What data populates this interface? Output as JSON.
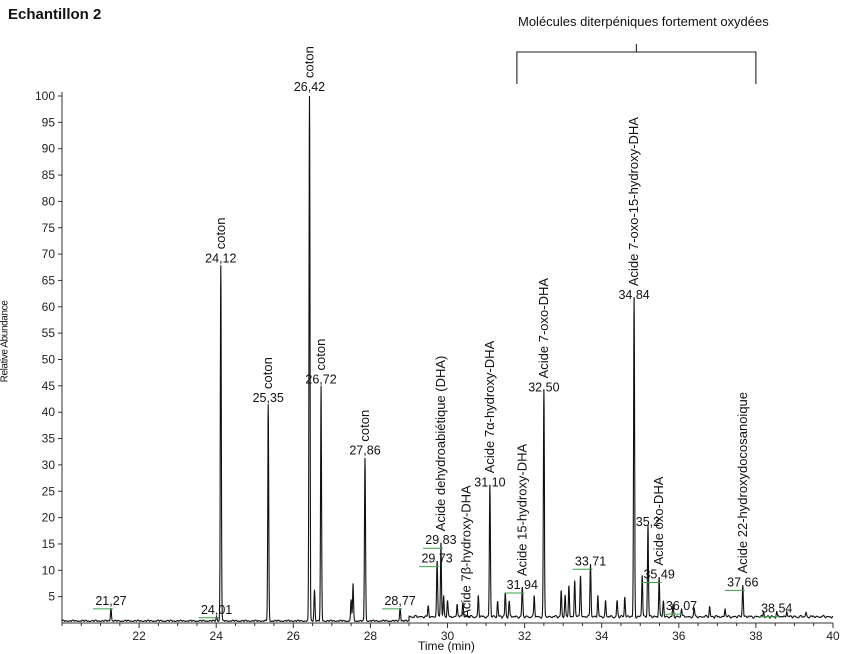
{
  "title": "Echantillon 2",
  "bracket_label": "Molécules diterpéniques fortement oxydées",
  "colors": {
    "trace": "#111111",
    "baseline_marks": "#3aa04a"
  },
  "chart_data": {
    "type": "line",
    "xlabel": "Time (min)",
    "ylabel": "Relative Abundance",
    "xlim": [
      20,
      40
    ],
    "ylim": [
      0,
      100
    ],
    "x_ticks": [
      22,
      24,
      26,
      28,
      30,
      32,
      34,
      36,
      38,
      40
    ],
    "y_ticks": [
      5,
      10,
      15,
      20,
      25,
      30,
      35,
      40,
      45,
      50,
      55,
      60,
      65,
      70,
      75,
      80,
      85,
      90,
      95,
      100
    ],
    "bracket_range": [
      31.8,
      38.0
    ],
    "peaks": [
      {
        "x": 21.27,
        "y": 2.5,
        "label": "21,27",
        "annotation": ""
      },
      {
        "x": 24.01,
        "y": 0.8,
        "label": "24,01",
        "annotation": ""
      },
      {
        "x": 24.12,
        "y": 67.5,
        "label": "24,12",
        "annotation": "coton"
      },
      {
        "x": 25.35,
        "y": 41.0,
        "label": "25,35",
        "annotation": "coton"
      },
      {
        "x": 26.42,
        "y": 100.0,
        "label": "26,42",
        "annotation": "coton"
      },
      {
        "x": 26.72,
        "y": 44.5,
        "label": "26,72",
        "annotation": "coton"
      },
      {
        "x": 27.86,
        "y": 31.0,
        "label": "27,86",
        "annotation": "coton"
      },
      {
        "x": 28.77,
        "y": 2.5,
        "label": "28,77",
        "annotation": ""
      },
      {
        "x": 29.73,
        "y": 10.5,
        "label": "29,73",
        "annotation": ""
      },
      {
        "x": 29.83,
        "y": 14.0,
        "label": "29,83",
        "annotation": "Acide dehydroabiétique (DHA)"
      },
      {
        "x": 31.1,
        "y": 25.0,
        "label": "31,10",
        "annotation": "Acide 7α-hydroxy-DHA"
      },
      {
        "x": 31.94,
        "y": 5.5,
        "label": "31,94",
        "annotation": "Acide 15-hydroxy-DHA"
      },
      {
        "x": 32.5,
        "y": 43.0,
        "label": "32,50",
        "annotation": "Acide 7-oxo-DHA"
      },
      {
        "x": 33.71,
        "y": 10.0,
        "label": "33,71",
        "annotation": ""
      },
      {
        "x": 34.84,
        "y": 60.5,
        "label": "34,84",
        "annotation": "Acide 7-oxo-15-hydroxy-DHA"
      },
      {
        "x": 35.2,
        "y": 17.5,
        "label": "35,2",
        "annotation": ""
      },
      {
        "x": 35.49,
        "y": 7.5,
        "label": "35,49",
        "annotation": "Acide oxo-DHA"
      },
      {
        "x": 36.07,
        "y": 1.5,
        "label": "36,07",
        "annotation": ""
      },
      {
        "x": 37.66,
        "y": 6.0,
        "label": "37,66",
        "annotation": "Acide 22-hydroxydocosanoique"
      },
      {
        "x": 38.54,
        "y": 1.0,
        "label": "38,54",
        "annotation": ""
      }
    ],
    "extra_annotations": [
      {
        "x": 30.6,
        "text": "Acide 7β-hydroxy-DHA"
      }
    ]
  }
}
